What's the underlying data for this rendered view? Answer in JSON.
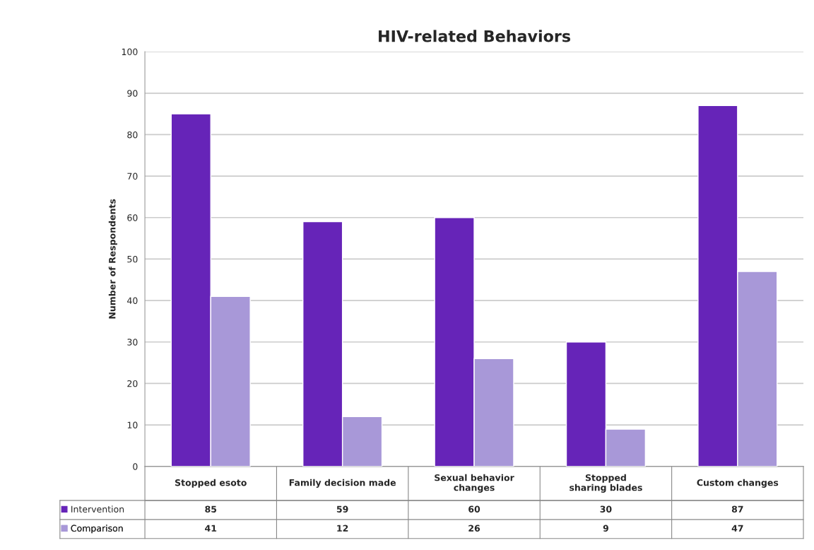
{
  "chart_data": {
    "type": "bar",
    "title": "HIV-related Behaviors",
    "ylabel": "Number of Respondents",
    "categories": [
      "Stopped esoto",
      "Family decision made",
      "Sexual behavior changes",
      "Stopped sharing blades",
      "Custom changes"
    ],
    "series": [
      {
        "name": "Intervention",
        "color": "#6624b8",
        "values": [
          85,
          59,
          60,
          30,
          87
        ]
      },
      {
        "name": "Comparison",
        "color": "#a898d8",
        "values": [
          41,
          12,
          26,
          9,
          47
        ]
      }
    ],
    "ylim": [
      0,
      100
    ],
    "yticks": [
      0,
      10,
      20,
      30,
      40,
      50,
      60,
      70,
      80,
      90,
      100
    ],
    "grid": "y",
    "legend": "bottom",
    "data_labels": true
  }
}
